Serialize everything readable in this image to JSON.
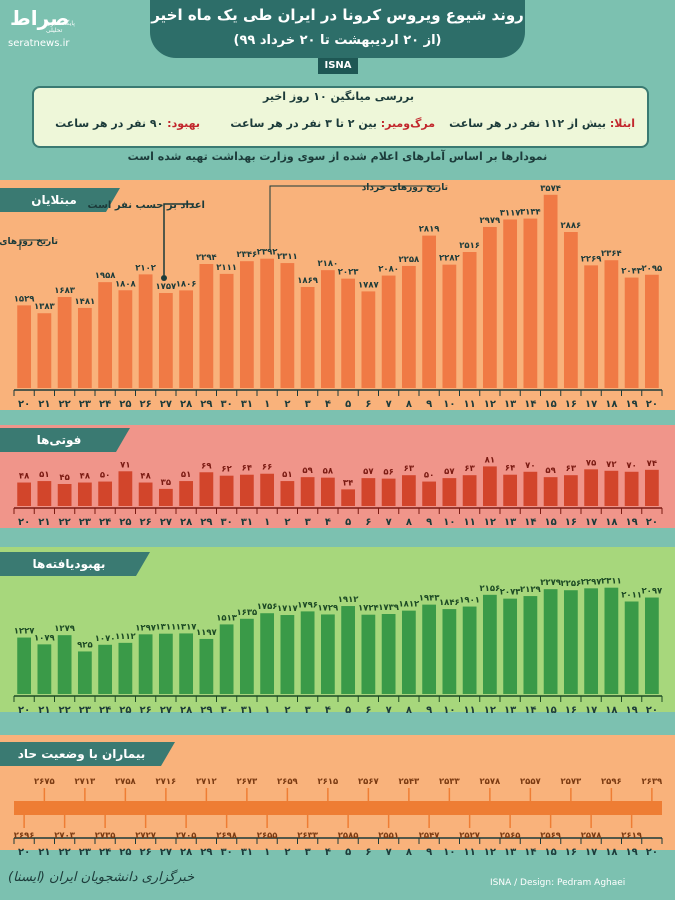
{
  "header": {
    "title": "روند شیوع ویروس کرونا در ایران طی یک ماه اخیر",
    "subtitle": "(از ۲۰ اردیبهشت تا ۲۰ خرداد ۹۹)",
    "source": "ISNA",
    "logo": "صراط",
    "logo_tagline": "پایگاه خبری تحلیلی",
    "site": "seratnews.ir"
  },
  "averages": {
    "title": "بررسی میانگین ۱۰ روز اخیر",
    "infection_key": "ابتلا:",
    "infection_text": "بیش از ۱۱۲ نفر در هر ساعت",
    "death_key": "مرگ‌ومیر:",
    "death_text": "بین ۲ تا ۳ نفر در هر ساعت",
    "recovery_key": "بهبود:",
    "recovery_text": "۹۰ نفر در هر ساعت"
  },
  "note": "نمودارها بر اساس آمارهای اعلام شده از سوی وزارت بهداشت تهیه شده است",
  "annotations": {
    "ordibehesht_dates": "تاریخ روزهای اردیبهشت",
    "khordad_dates": "تاریخ روزهای خرداد",
    "numbers_per_person": "اعداد بر حسب نفر است"
  },
  "footer": {
    "credit": "ISNA / Design: Pedram Aghaei",
    "signature": "خبرگزاری دانشجویان ایران (ایسنا)"
  },
  "colors": {
    "background": "#7cc1b0",
    "panel_tab": "#3a7a72",
    "infected_bar": "#f07a45",
    "deaths_bar": "#d2452b",
    "recovered_bar": "#3a9a48",
    "critical_line": "#ee7d34"
  },
  "chart_data": [
    {
      "type": "bar",
      "title": "مبتلایان",
      "categories": [
        "۲۰",
        "۲۱",
        "۲۲",
        "۲۳",
        "۲۴",
        "۲۵",
        "۲۶",
        "۲۷",
        "۲۸",
        "۲۹",
        "۳۰",
        "۳۱",
        "۱",
        "۲",
        "۳",
        "۴",
        "۵",
        "۶",
        "۷",
        "۸",
        "۹",
        "۱۰",
        "۱۱",
        "۱۲",
        "۱۳",
        "۱۴",
        "۱۵",
        "۱۶",
        "۱۷",
        "۱۸",
        "۱۹",
        "۲۰"
      ],
      "values": [
        1529,
        1383,
        1683,
        1481,
        1958,
        1808,
        2102,
        1757,
        1806,
        2294,
        2111,
        2346,
        2392,
        2311,
        1869,
        2180,
        2023,
        1787,
        2080,
        2258,
        2819,
        2282,
        2516,
        2979,
        3117,
        3134,
        3574,
        2886,
        2269,
        2364,
        2043,
        2095
      ],
      "value_labels": [
        "۱۵۲۹",
        "۱۳۸۳",
        "۱۶۸۳",
        "۱۴۸۱",
        "۱۹۵۸",
        "۱۸۰۸",
        "۲۱۰۲",
        "۱۷۵۷",
        "۱۸۰۶",
        "۲۲۹۴",
        "۲۱۱۱",
        "۲۳۴۶",
        "۲۳۹۲",
        "۲۳۱۱",
        "۱۸۶۹",
        "۲۱۸۰",
        "۲۰۲۳",
        "۱۷۸۷",
        "۲۰۸۰",
        "۲۲۵۸",
        "۲۸۱۹",
        "۲۲۸۲",
        "۲۵۱۶",
        "۲۹۷۹",
        "۳۱۱۷",
        "۳۱۳۴",
        "۳۵۷۴",
        "۲۸۸۶",
        "۲۲۶۹",
        "۲۳۶۴",
        "۲۰۴۳",
        "۲۰۹۵"
      ],
      "ylim": [
        0,
        3700
      ]
    },
    {
      "type": "bar",
      "title": "فوتی‌ها",
      "categories": [
        "۲۰",
        "۲۱",
        "۲۲",
        "۲۳",
        "۲۴",
        "۲۵",
        "۲۶",
        "۲۷",
        "۲۸",
        "۲۹",
        "۳۰",
        "۳۱",
        "۱",
        "۲",
        "۳",
        "۴",
        "۵",
        "۶",
        "۷",
        "۸",
        "۹",
        "۱۰",
        "۱۱",
        "۱۲",
        "۱۳",
        "۱۴",
        "۱۵",
        "۱۶",
        "۱۷",
        "۱۸",
        "۱۹",
        "۲۰"
      ],
      "values": [
        48,
        51,
        45,
        48,
        50,
        71,
        48,
        35,
        51,
        69,
        62,
        64,
        66,
        51,
        59,
        58,
        34,
        57,
        56,
        63,
        50,
        57,
        63,
        81,
        64,
        70,
        59,
        63,
        75,
        72,
        70,
        74
      ],
      "value_labels": [
        "۴۸",
        "۵۱",
        "۴۵",
        "۴۸",
        "۵۰",
        "۷۱",
        "۴۸",
        "۳۵",
        "۵۱",
        "۶۹",
        "۶۲",
        "۶۴",
        "۶۶",
        "۵۱",
        "۵۹",
        "۵۸",
        "۳۴",
        "۵۷",
        "۵۶",
        "۶۳",
        "۵۰",
        "۵۷",
        "۶۳",
        "۸۱",
        "۶۴",
        "۷۰",
        "۵۹",
        "۶۳",
        "۷۵",
        "۷۲",
        "۷۰",
        "۷۴"
      ],
      "ylim": [
        0,
        90
      ]
    },
    {
      "type": "bar",
      "title": "بهبودیافته‌ها",
      "categories": [
        "۲۰",
        "۲۱",
        "۲۲",
        "۲۳",
        "۲۴",
        "۲۵",
        "۲۶",
        "۲۷",
        "۲۸",
        "۲۹",
        "۳۰",
        "۳۱",
        "۱",
        "۲",
        "۳",
        "۴",
        "۵",
        "۶",
        "۷",
        "۸",
        "۹",
        "۱۰",
        "۱۱",
        "۱۲",
        "۱۳",
        "۱۴",
        "۱۵",
        "۱۶",
        "۱۷",
        "۱۸",
        "۱۹",
        "۲۰"
      ],
      "values": [
        1227,
        1079,
        1279,
        925,
        1070,
        1112,
        1297,
        1311,
        1317,
        1197,
        1513,
        1635,
        1756,
        1717,
        1796,
        1729,
        1912,
        1724,
        1739,
        1812,
        1943,
        1846,
        1901,
        2156,
        2073,
        2129,
        2279,
        2256,
        2297,
        2311,
        2011,
        2097
      ],
      "value_labels": [
        "۱۲۲۷",
        "۱۰۷۹",
        "۱۲۷۹",
        "۹۲۵",
        "۱۰۷۰",
        "۱۱۱۲",
        "۱۲۹۷",
        "۱۳۱۱",
        "۱۳۱۷",
        "۱۱۹۷",
        "۱۵۱۳",
        "۱۶۳۵",
        "۱۷۵۶",
        "۱۷۱۷",
        "۱۷۹۶",
        "۱۷۲۹",
        "۱۹۱۲",
        "۱۷۲۴",
        "۱۷۳۹",
        "۱۸۱۲",
        "۱۹۴۳",
        "۱۸۴۶",
        "۱۹۰۱",
        "۲۱۵۶",
        "۲۰۷۳",
        "۲۱۲۹",
        "۲۲۷۹",
        "۲۲۵۶",
        "۲۲۹۷",
        "۲۳۱۱",
        "۲۰۱۱",
        "۲۰۹۷"
      ],
      "ylim": [
        0,
        2500
      ]
    },
    {
      "type": "line",
      "title": "بیماران با وضعیت حاد",
      "categories": [
        "۲۰",
        "۲۱",
        "۲۲",
        "۲۳",
        "۲۴",
        "۲۵",
        "۲۶",
        "۲۷",
        "۲۸",
        "۲۹",
        "۳۰",
        "۳۱",
        "۱",
        "۲",
        "۳",
        "۴",
        "۵",
        "۶",
        "۷",
        "۸",
        "۹",
        "۱۰",
        "۱۱",
        "۱۲",
        "۱۳",
        "۱۴",
        "۱۵",
        "۱۶",
        "۱۷",
        "۱۸",
        "۱۹",
        "۲۰"
      ],
      "values": [
        2696,
        2675,
        2703,
        2713,
        2735,
        2758,
        2727,
        2716,
        2705,
        2712,
        2698,
        2673,
        2655,
        2659,
        2633,
        2615,
        2585,
        2567,
        2551,
        2543,
        2547,
        2533,
        2527,
        2578,
        2565,
        2557,
        2569,
        2573,
        2578,
        2596,
        2619,
        2639
      ],
      "value_labels": [
        "۲۶۹۶",
        "۲۶۷۵",
        "۲۷۰۳",
        "۲۷۱۳",
        "۲۷۳۵",
        "۲۷۵۸",
        "۲۷۲۷",
        "۲۷۱۶",
        "۲۷۰۵",
        "۲۷۱۲",
        "۲۶۹۸",
        "۲۶۷۳",
        "۲۶۵۵",
        "۲۶۵۹",
        "۲۶۳۳",
        "۲۶۱۵",
        "۲۵۸۵",
        "۲۵۶۷",
        "۲۵۵۱",
        "۲۵۴۳",
        "۲۵۴۷",
        "۲۵۳۳",
        "۲۵۲۷",
        "۲۵۷۸",
        "۲۵۶۵",
        "۲۵۵۷",
        "۲۵۶۹",
        "۲۵۷۳",
        "۲۵۷۸",
        "۲۵۹۶",
        "۲۶۱۹",
        "۲۶۳۹"
      ]
    }
  ]
}
